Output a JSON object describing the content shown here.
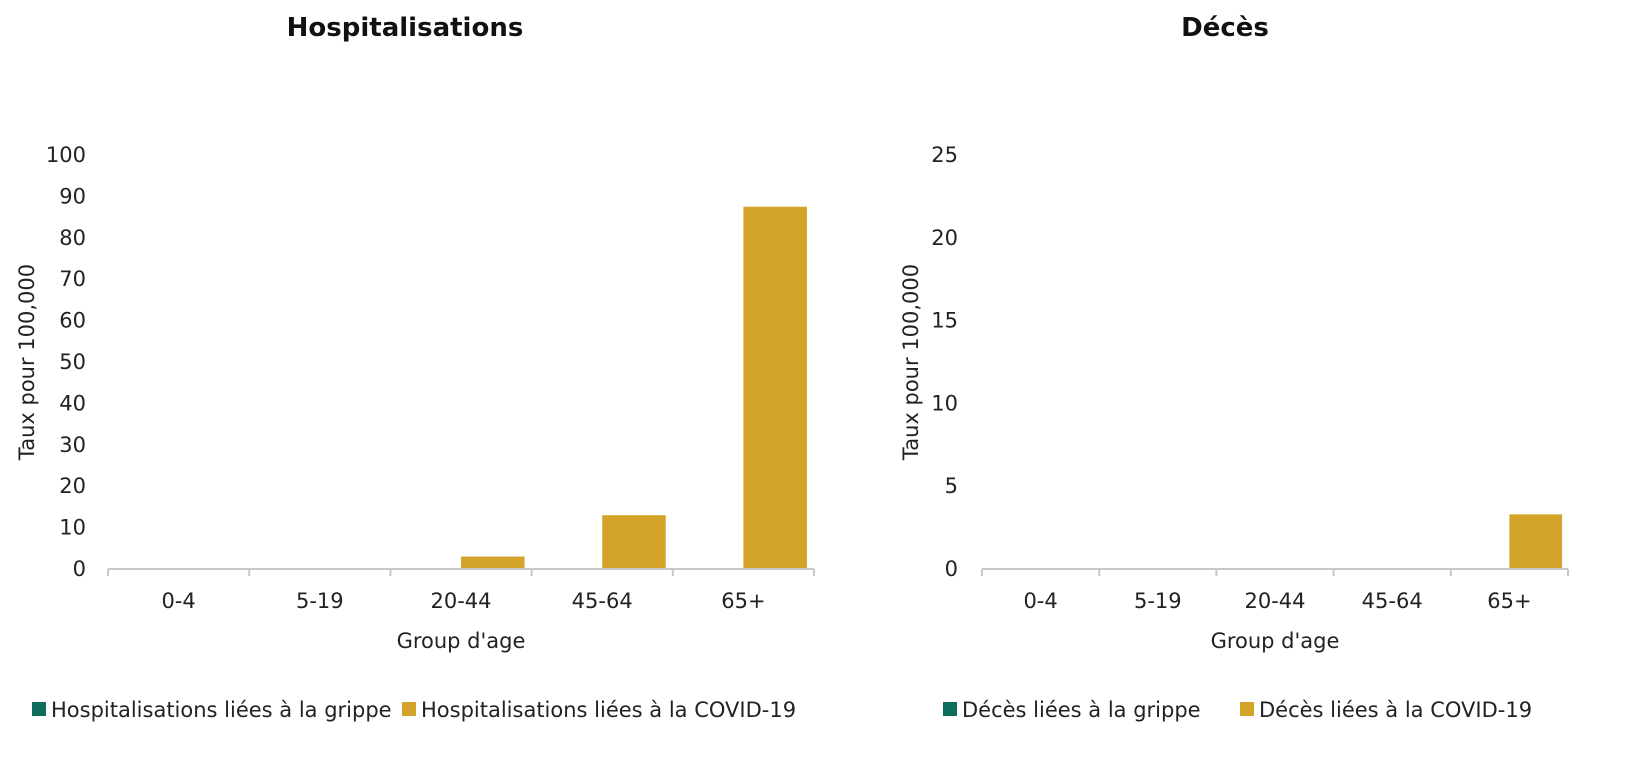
{
  "colors": {
    "grippe": "#0d6e5e",
    "covid": "#d4a32a",
    "axis": "#c8c8c8"
  },
  "chart_data": [
    {
      "type": "bar",
      "title": "Hospitalisations",
      "xlabel": "Group d'age",
      "ylabel": "Taux pour 100,000",
      "categories": [
        "0-4",
        "5-19",
        "20-44",
        "45-64",
        "65+"
      ],
      "ylim": [
        0,
        100
      ],
      "yticks": [
        0,
        10,
        20,
        30,
        40,
        50,
        60,
        70,
        80,
        90,
        100
      ],
      "grid": false,
      "legend_position": "bottom",
      "series": [
        {
          "name": "Hospitalisations liées à la grippe",
          "color_key": "grippe",
          "values": [
            0,
            0,
            0,
            0,
            0
          ]
        },
        {
          "name": "Hospitalisations liées à la COVID-19",
          "color_key": "covid",
          "values": [
            0,
            0,
            3,
            13,
            87.5
          ]
        }
      ]
    },
    {
      "type": "bar",
      "title": "Décès",
      "xlabel": "Group d'age",
      "ylabel": "Taux pour 100,000",
      "categories": [
        "0-4",
        "5-19",
        "20-44",
        "45-64",
        "65+"
      ],
      "ylim": [
        0,
        25
      ],
      "yticks": [
        0,
        5,
        10,
        15,
        20,
        25
      ],
      "grid": false,
      "legend_position": "bottom",
      "series": [
        {
          "name": "Décès liées à la grippe",
          "color_key": "grippe",
          "values": [
            0,
            0,
            0,
            0,
            0
          ]
        },
        {
          "name": "Décès liées à la COVID-19",
          "color_key": "covid",
          "values": [
            0,
            0,
            0,
            0,
            3.3
          ]
        }
      ]
    }
  ]
}
